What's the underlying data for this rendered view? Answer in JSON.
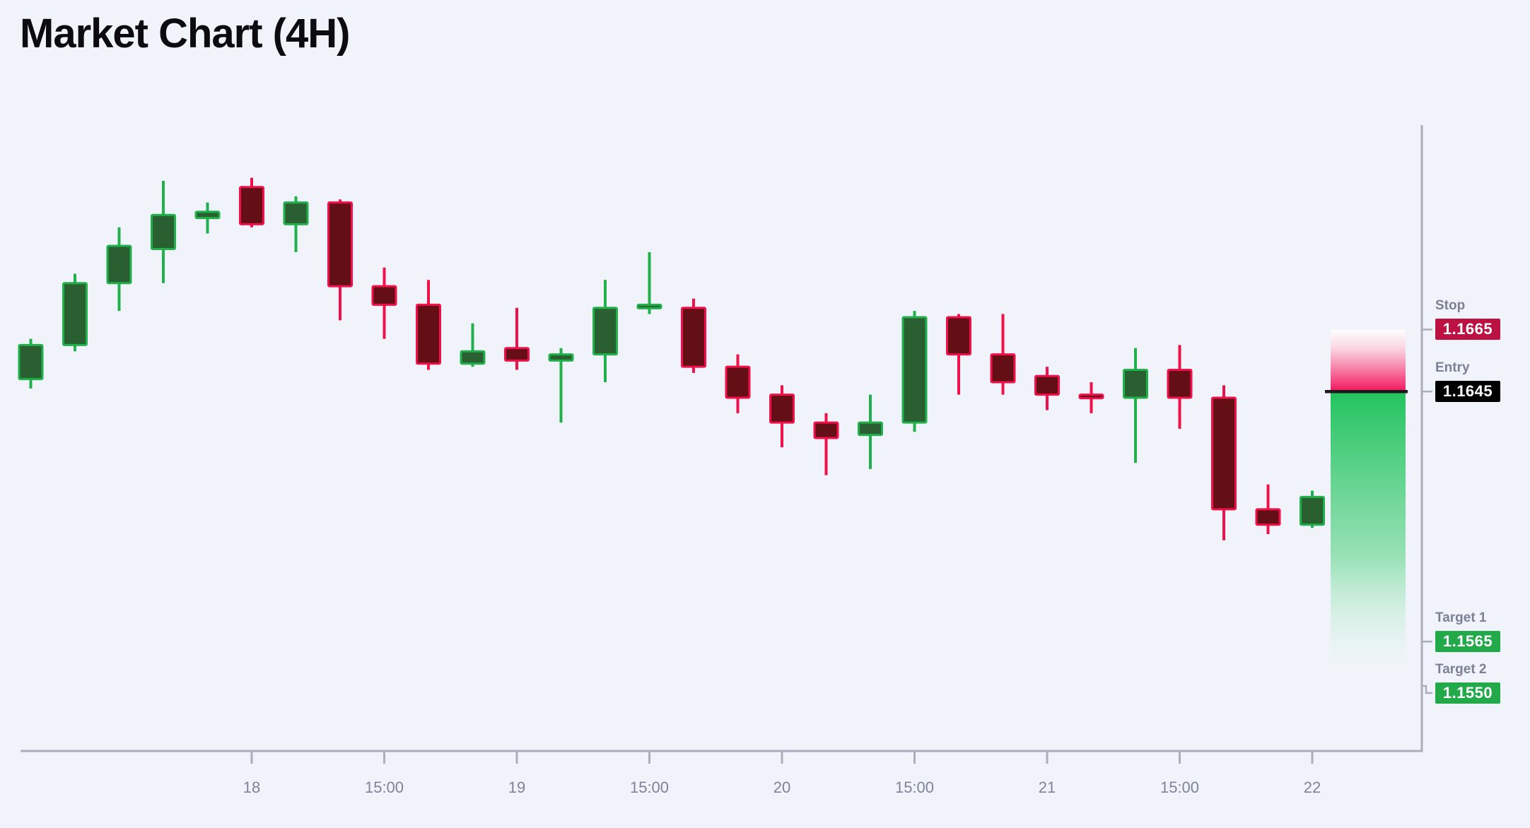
{
  "title": "Market Chart (4H)",
  "colors": {
    "background": "#f0f3fa",
    "bull_border": "#22b04c",
    "bull_fill": "#295f31",
    "bear_border": "#f0104a",
    "bear_fill": "#640e16",
    "axis": "#a9aeba",
    "tick_text": "#7e8398",
    "label_text": "#7b8096",
    "entry_line": "#1b1b1b",
    "stop_badge": "#bb1243",
    "entry_badge": "#000000",
    "target_badge": "#21a94a",
    "zone_pink": "#f3155c",
    "zone_green": "#22c35e"
  },
  "trade": {
    "stop": {
      "label": "Stop",
      "value": "1.1665",
      "price": 1.1665
    },
    "entry": {
      "label": "Entry",
      "value": "1.1645",
      "price": 1.1645
    },
    "target1": {
      "label": "Target 1",
      "value": "1.1565",
      "price": 1.1565
    },
    "target2": {
      "label": "Target 2",
      "value": "1.1550",
      "price": 1.155
    }
  },
  "chart_data": {
    "type": "candlestick",
    "title": "Market Chart (4H)",
    "timeframe": "4H",
    "ylim": [
      1.1529,
      1.1731
    ],
    "legend": "none",
    "grid": false,
    "x_tick_labels": [
      "18",
      "15:00",
      "19",
      "15:00",
      "20",
      "15:00",
      "21",
      "15:00",
      "22"
    ],
    "x_tick_candle_indices": [
      5,
      8,
      11,
      14,
      17,
      20,
      23,
      26,
      29
    ],
    "candles": [
      {
        "o": 1.1649,
        "h": 1.1662,
        "l": 1.1646,
        "c": 1.166
      },
      {
        "o": 1.166,
        "h": 1.1683,
        "l": 1.1658,
        "c": 1.168
      },
      {
        "o": 1.168,
        "h": 1.1698,
        "l": 1.1671,
        "c": 1.1692
      },
      {
        "o": 1.1691,
        "h": 1.1713,
        "l": 1.168,
        "c": 1.1702
      },
      {
        "o": 1.1701,
        "h": 1.1706,
        "l": 1.1696,
        "c": 1.1703
      },
      {
        "o": 1.1711,
        "h": 1.1714,
        "l": 1.1698,
        "c": 1.1699
      },
      {
        "o": 1.1699,
        "h": 1.1708,
        "l": 1.169,
        "c": 1.1706
      },
      {
        "o": 1.1706,
        "h": 1.1707,
        "l": 1.1668,
        "c": 1.1679
      },
      {
        "o": 1.1679,
        "h": 1.1685,
        "l": 1.1662,
        "c": 1.1673
      },
      {
        "o": 1.1673,
        "h": 1.1681,
        "l": 1.1652,
        "c": 1.1654
      },
      {
        "o": 1.1654,
        "h": 1.1667,
        "l": 1.1653,
        "c": 1.1658
      },
      {
        "o": 1.1659,
        "h": 1.1672,
        "l": 1.1652,
        "c": 1.1655
      },
      {
        "o": 1.1655,
        "h": 1.1659,
        "l": 1.1635,
        "c": 1.1657
      },
      {
        "o": 1.1657,
        "h": 1.1681,
        "l": 1.1648,
        "c": 1.1672
      },
      {
        "o": 1.1672,
        "h": 1.169,
        "l": 1.167,
        "c": 1.1673
      },
      {
        "o": 1.1672,
        "h": 1.1675,
        "l": 1.1651,
        "c": 1.1653
      },
      {
        "o": 1.1653,
        "h": 1.1657,
        "l": 1.1638,
        "c": 1.1643
      },
      {
        "o": 1.1644,
        "h": 1.1647,
        "l": 1.1627,
        "c": 1.1635
      },
      {
        "o": 1.1635,
        "h": 1.1638,
        "l": 1.1618,
        "c": 1.163
      },
      {
        "o": 1.1631,
        "h": 1.1644,
        "l": 1.162,
        "c": 1.1635
      },
      {
        "o": 1.1635,
        "h": 1.1671,
        "l": 1.1632,
        "c": 1.1669
      },
      {
        "o": 1.1669,
        "h": 1.167,
        "l": 1.1644,
        "c": 1.1657
      },
      {
        "o": 1.1657,
        "h": 1.167,
        "l": 1.1644,
        "c": 1.1648
      },
      {
        "o": 1.165,
        "h": 1.1653,
        "l": 1.1639,
        "c": 1.1644
      },
      {
        "o": 1.1644,
        "h": 1.1648,
        "l": 1.1638,
        "c": 1.1643
      },
      {
        "o": 1.1643,
        "h": 1.1659,
        "l": 1.1622,
        "c": 1.1652
      },
      {
        "o": 1.1652,
        "h": 1.166,
        "l": 1.1633,
        "c": 1.1643
      },
      {
        "o": 1.1643,
        "h": 1.1647,
        "l": 1.1597,
        "c": 1.1607
      },
      {
        "o": 1.1607,
        "h": 1.1615,
        "l": 1.1599,
        "c": 1.1602
      },
      {
        "o": 1.1602,
        "h": 1.1613,
        "l": 1.1601,
        "c": 1.1611
      }
    ]
  }
}
